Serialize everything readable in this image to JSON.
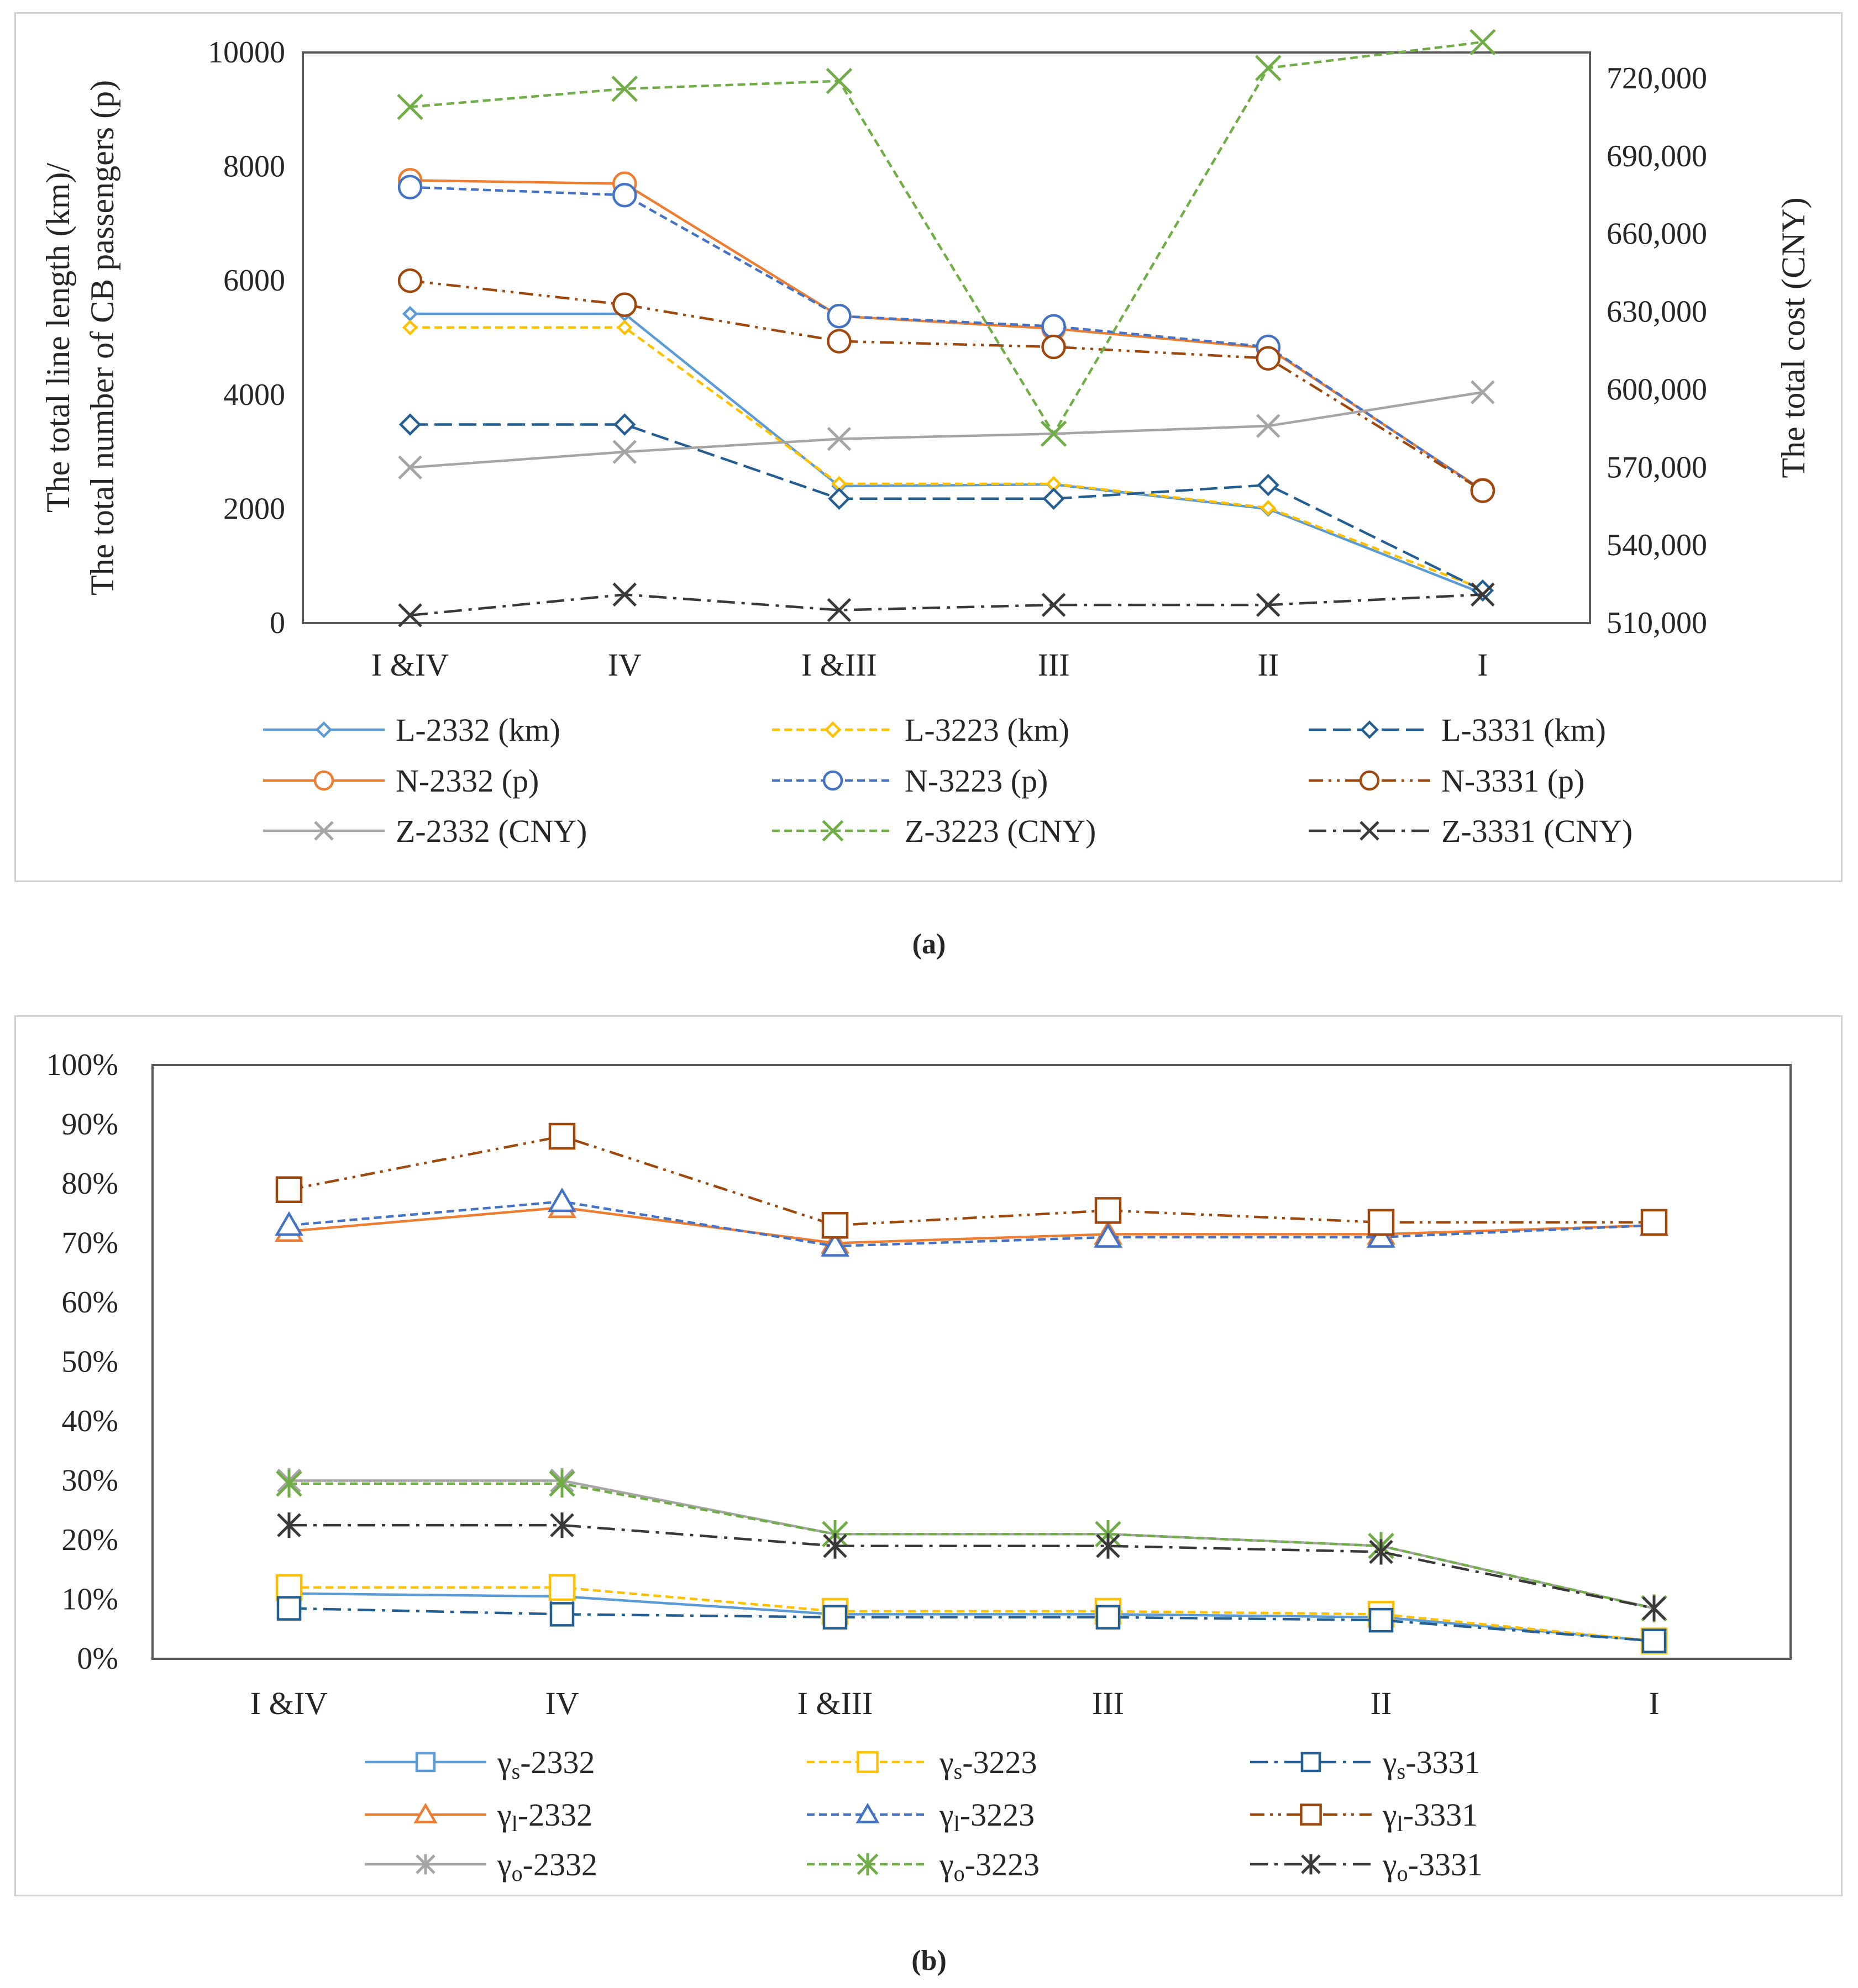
{
  "chart_data": [
    {
      "type": "line",
      "panel_caption": "(a)",
      "categories": [
        "I &IV",
        "IV",
        "I &III",
        "III",
        "II",
        "I"
      ],
      "ylabel_left": [
        "The total line length (km)/",
        "The total number of CB passengers (p)"
      ],
      "ylabel_right": "The total cost (CNY)",
      "ylim_left": [
        0,
        10000
      ],
      "yticks_left": [
        "0",
        "2000",
        "4000",
        "6000",
        "8000",
        "10000"
      ],
      "ylim_right": [
        510000,
        730000
      ],
      "yticks_right": [
        "510,000",
        "540,000",
        "570,000",
        "600,000",
        "630,000",
        "660,000",
        "690,000",
        "720,000"
      ],
      "series": [
        {
          "name": "L-2332 (km)",
          "axis": "left",
          "values": [
            5420,
            5420,
            2400,
            2430,
            2000,
            520
          ],
          "color": "#5b9bd5",
          "dash": "solid",
          "marker": "diamond",
          "ms": 11
        },
        {
          "name": "L-3223 (km)",
          "axis": "left",
          "values": [
            5180,
            5180,
            2440,
            2440,
            2020,
            600
          ],
          "color": "#ffc000",
          "dash": "dashed",
          "marker": "diamond",
          "ms": 11
        },
        {
          "name": "L-3331 (km)",
          "axis": "left",
          "values": [
            3480,
            3480,
            2180,
            2180,
            2420,
            570
          ],
          "color": "#255e91",
          "dash": "longdash",
          "marker": "diamond",
          "ms": 17
        },
        {
          "name": "N-2332 (p)",
          "axis": "left",
          "values": [
            7760,
            7700,
            5380,
            5160,
            4820,
            2330
          ],
          "color": "#ed7d31",
          "dash": "solid",
          "marker": "circle",
          "ms": 20
        },
        {
          "name": "N-3223 (p)",
          "axis": "left",
          "values": [
            7640,
            7500,
            5380,
            5200,
            4840,
            2320
          ],
          "color": "#4472c4",
          "dash": "dashed",
          "marker": "circle",
          "ms": 20
        },
        {
          "name": "N-3331 (p)",
          "axis": "left",
          "values": [
            6000,
            5580,
            4940,
            4840,
            4640,
            2320
          ],
          "color": "#9e480e",
          "dash": "dashdotdot",
          "marker": "circle",
          "ms": 20
        },
        {
          "name": "Z-2332 (CNY)",
          "axis": "right",
          "values": [
            570000,
            576000,
            581000,
            583000,
            586000,
            599000
          ],
          "color": "#a5a5a5",
          "dash": "solid",
          "marker": "x",
          "ms": 20
        },
        {
          "name": "Z-3223 (CNY)",
          "axis": "right",
          "values": [
            709000,
            716000,
            719000,
            583000,
            724000,
            734000
          ],
          "color": "#70ad47",
          "dash": "dashed",
          "marker": "x",
          "ms": 22
        },
        {
          "name": "Z-3331 (CNY)",
          "axis": "right",
          "values": [
            513000,
            521000,
            515000,
            517000,
            517000,
            521000
          ],
          "color": "#3b3838",
          "dash": "longdashdot",
          "marker": "x",
          "ms": 20
        }
      ]
    },
    {
      "type": "line",
      "panel_caption": "(b)",
      "categories": [
        "I &IV",
        "IV",
        "I &III",
        "III",
        "II",
        "I"
      ],
      "ylim": [
        0,
        100
      ],
      "yticks": [
        "0%",
        "10%",
        "20%",
        "30%",
        "40%",
        "50%",
        "60%",
        "70%",
        "80%",
        "90%",
        "100%"
      ],
      "series": [
        {
          "name": "γs-2332",
          "sym": "γ",
          "sub": "s",
          "suffix": "-2332",
          "values": [
            11,
            10.5,
            7.5,
            7.5,
            7,
            3
          ],
          "color": "#5b9bd5",
          "dash": "solid",
          "marker": "square",
          "ms": 20
        },
        {
          "name": "γs-3223",
          "sym": "γ",
          "sub": "s",
          "suffix": "-3223",
          "values": [
            12,
            12,
            8,
            8,
            7.5,
            3
          ],
          "color": "#ffc000",
          "dash": "dashed",
          "marker": "square",
          "ms": 22
        },
        {
          "name": "γs-3331",
          "sym": "γ",
          "sub": "s",
          "suffix": "-3331",
          "values": [
            8.5,
            7.5,
            7,
            7,
            6.5,
            3
          ],
          "color": "#255e91",
          "dash": "longdashdot",
          "marker": "square",
          "ms": 20
        },
        {
          "name": "γl-2332",
          "sym": "γ",
          "sub": "l",
          "suffix": "-2332",
          "values": [
            72,
            76,
            70,
            71.5,
            71.5,
            73
          ],
          "color": "#ed7d31",
          "dash": "solid",
          "marker": "triangle",
          "ms": 21
        },
        {
          "name": "γl-3223",
          "sym": "γ",
          "sub": "l",
          "suffix": "-3223",
          "values": [
            73,
            77,
            69.5,
            71,
            71,
            73
          ],
          "color": "#4472c4",
          "dash": "dashed",
          "marker": "triangle",
          "ms": 21
        },
        {
          "name": "γl-3331",
          "sym": "γ",
          "sub": "l",
          "suffix": "-3331",
          "values": [
            79,
            88,
            73,
            75.5,
            73.5,
            73.5
          ],
          "color": "#9e480e",
          "dash": "dashdotdot",
          "marker": "square",
          "ms": 22
        },
        {
          "name": "γo-2332",
          "sym": "γ",
          "sub": "o",
          "suffix": "-2332",
          "values": [
            30,
            30,
            21,
            21,
            19,
            8.5
          ],
          "color": "#a5a5a5",
          "dash": "solid",
          "marker": "star",
          "ms": 20
        },
        {
          "name": "γo-3223",
          "sym": "γ",
          "sub": "o",
          "suffix": "-3223",
          "values": [
            29.5,
            29.5,
            21,
            21,
            19,
            8.5
          ],
          "color": "#70ad47",
          "dash": "dashed",
          "marker": "star",
          "ms": 22
        },
        {
          "name": "γo-3331",
          "sym": "γ",
          "sub": "o",
          "suffix": "-3331",
          "values": [
            22.5,
            22.5,
            19,
            19,
            18,
            8.5
          ],
          "color": "#3b3838",
          "dash": "longdashdot",
          "marker": "star",
          "ms": 20
        }
      ]
    }
  ]
}
